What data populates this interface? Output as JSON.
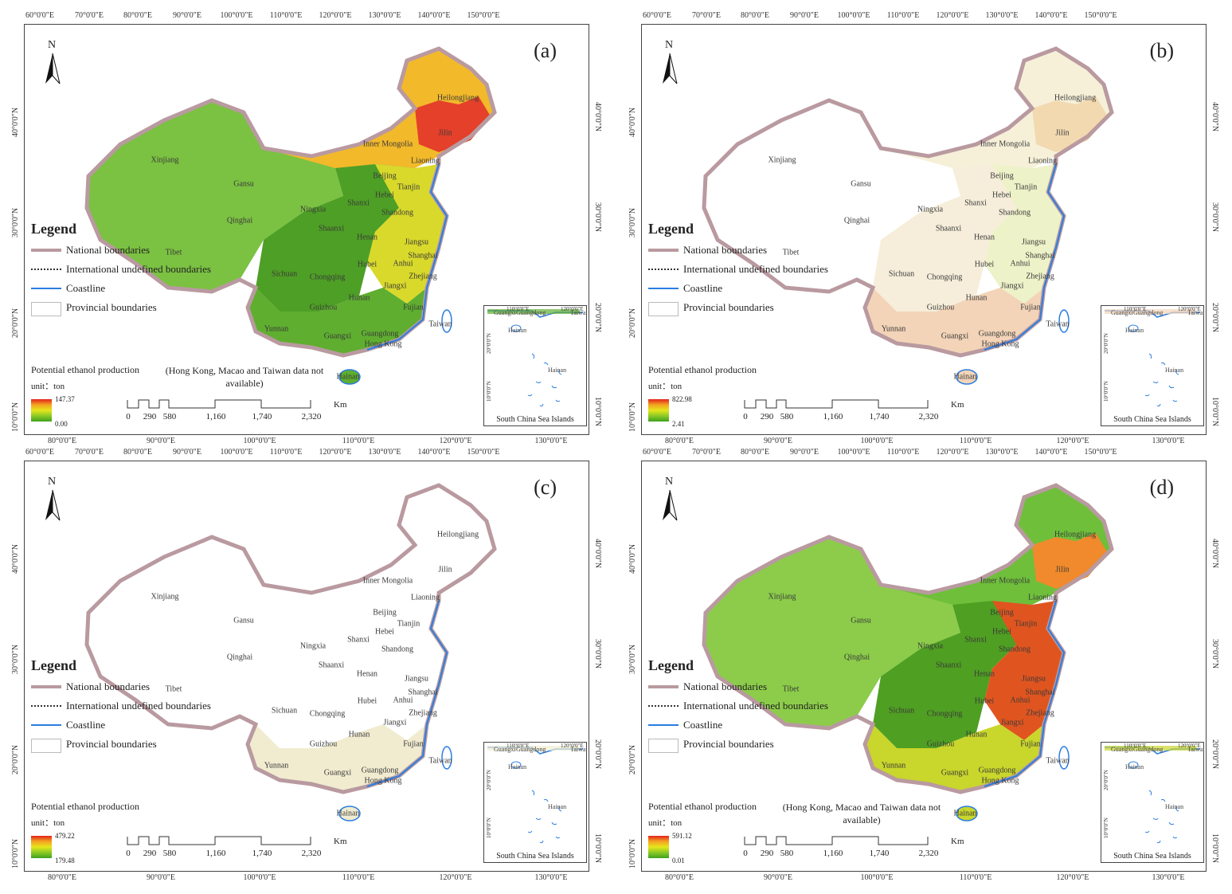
{
  "ticks": {
    "top": [
      "60°0'0\"E",
      "70°0'0\"E",
      "80°0'0\"E",
      "90°0'0\"E",
      "100°0'0\"E",
      "110°0'0\"E",
      "120°0'0\"E",
      "130°0'0\"E",
      "140°0'0\"E",
      "150°0'0\"E"
    ],
    "bottom": [
      "80°0'0\"E",
      "90°0'0\"E",
      "100°0'0\"E",
      "110°0'0\"E",
      "120°0'0\"E",
      "130°0'0\"E"
    ],
    "lat": [
      "40°0'0\"N",
      "30°0'0\"N",
      "20°0'0\"N",
      "10°0'0\"N"
    ]
  },
  "north_label": "N",
  "legend": {
    "title": "Legend",
    "items": [
      "National boundaries",
      "International undefined boundaries",
      "Coastline",
      "Provincial boundaries"
    ]
  },
  "production": {
    "title": "Potential ethanol production",
    "unit": "unit：ton",
    "note": "(Hong Kong, Macao and Taiwan data not available)"
  },
  "scale": {
    "labels": [
      "0",
      "290",
      "580",
      "1,160",
      "1,740",
      "2,320"
    ],
    "unit": "Km"
  },
  "inset": {
    "caption": "South China Sea Islands",
    "ticks": [
      "110°0'0\"E",
      "120°0'0\"E",
      "20°0'0\"N",
      "10°0'0\"N"
    ],
    "places": [
      "Guangxi",
      "Guangdong",
      "Taiwan",
      "Hainan",
      "Hainan"
    ]
  },
  "provinces": [
    "Heilongjiang",
    "Jilin",
    "Inner Mongolia",
    "Liaoning",
    "Xinjiang",
    "Gansu",
    "Beijing",
    "Tianjin",
    "Hebei",
    "Ningxia",
    "Shanxi",
    "Shandong",
    "Qinghai",
    "Shaanxi",
    "Henan",
    "Jiangsu",
    "Tibet",
    "Shanghai",
    "Anhui",
    "Hubei",
    "Sichuan",
    "Chongqing",
    "Zhejiang",
    "Jiangxi",
    "Hunan",
    "Guizhou",
    "Fujian",
    "Taiwan",
    "Yunnan",
    "Guangdong",
    "Guangxi",
    "Hong Kong",
    "Hainan"
  ],
  "panels": [
    {
      "label": "(a)",
      "max": "147.37",
      "min": "0.00",
      "note": true,
      "colors": {
        "north": "#f2b92a",
        "northeast": "#e4402a",
        "west": "#7bc142",
        "central": "#4e9f25",
        "east": "#d9d92b",
        "south": "#5fae30"
      }
    },
    {
      "label": "(b)",
      "max": "822.98",
      "min": "2.41",
      "note": false,
      "colors": {
        "north": "#f6f0d8",
        "northeast": "#f2d9b0",
        "west": "#ffffff",
        "central": "#f6eeda",
        "east": "#eef2c8",
        "south": "#f3d4b8"
      }
    },
    {
      "label": "(c)",
      "max": "479.22",
      "min": "179.48",
      "note": false,
      "colors": {
        "north": "#ffffff",
        "northeast": "#ffffff",
        "west": "#ffffff",
        "central": "#ffffff",
        "east": "#ffffff",
        "south": "#f1ecd0"
      }
    },
    {
      "label": "(d)",
      "max": "591.12",
      "min": "0.01",
      "note": true,
      "colors": {
        "north": "#6fbf3b",
        "northeast": "#f08a2c",
        "west": "#8ccc4a",
        "central": "#4f9f22",
        "east": "#e0551f",
        "south": "#c9d62b"
      }
    }
  ]
}
